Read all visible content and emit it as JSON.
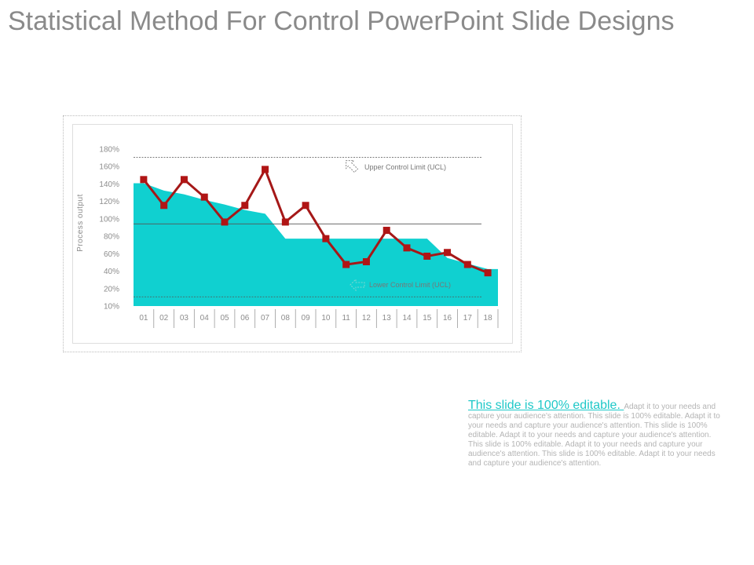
{
  "slide": {
    "title": "Statistical Method For Control PowerPoint Slide Designs",
    "text_lead": "This slide is 100% editable. ",
    "text_body": "Adapt it to your needs and capture your audience's attention. This slide is 100% editable. Adapt it to your needs and capture your audience's attention. This slide is 100% editable. Adapt it to your needs and capture your audience's attention. This slide is 100% editable. Adapt it to your needs and capture your audience's attention. This slide is 100% editable. Adapt it to your needs and capture your audience's attention."
  },
  "colors": {
    "area": "#10d0d0",
    "line": "#a51818",
    "marker": "#b01515",
    "axis_text": "#8c8c8c",
    "lead_text": "#1ec8c8",
    "arrow_ucl": "#888888",
    "arrow_lcl": "#7fd6d0"
  },
  "chart_data": {
    "type": "line",
    "ylabel": "Process output",
    "yticks": [
      "180%",
      "160%",
      "140%",
      "120%",
      "100%",
      "80%",
      "60%",
      "40%",
      "20%",
      "10%"
    ],
    "ylim": [
      10,
      180
    ],
    "categories": [
      "01",
      "02",
      "03",
      "04",
      "05",
      "06",
      "07",
      "08",
      "09",
      "10",
      "11",
      "12",
      "13",
      "14",
      "15",
      "16",
      "17",
      "18"
    ],
    "series": [
      {
        "kind": "line",
        "values": [
          147,
          119,
          147,
          128,
          101,
          119,
          158,
          101,
          119,
          83,
          55,
          58,
          92,
          73,
          64,
          68,
          55,
          46
        ]
      },
      {
        "kind": "area",
        "values": [
          143,
          135,
          131,
          125,
          120,
          114,
          110,
          83,
          83,
          83,
          83,
          83,
          83,
          83,
          83,
          62,
          56,
          50
        ]
      }
    ],
    "reference_lines": [
      {
        "value": 171,
        "style": "dotted"
      },
      {
        "value": 99,
        "style": "solid"
      },
      {
        "value": 20,
        "style": "dotted"
      }
    ],
    "annotations": {
      "ucl": "Upper Control Limit (UCL)",
      "lcl": "Lower Control Limit (UCL)"
    }
  }
}
